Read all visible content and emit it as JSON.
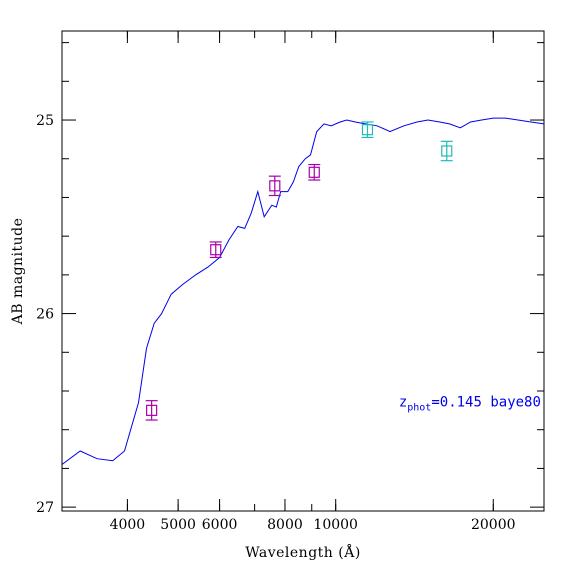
{
  "chart_data": {
    "type": "line",
    "xlabel": "Wavelength (Å)",
    "ylabel": "AB magnitude",
    "x_scale": "log",
    "y_inverted": true,
    "xlim": [
      3000,
      25000
    ],
    "ylim": [
      27.02,
      24.54
    ],
    "x_ticks": [
      {
        "value": 4000,
        "label": "4000"
      },
      {
        "value": 5000,
        "label": "5000"
      },
      {
        "value": 6000,
        "label": "6000"
      },
      {
        "value": 8000,
        "label": "8000"
      },
      {
        "value": 10000,
        "label": "10000"
      },
      {
        "value": 20000,
        "label": "20000"
      }
    ],
    "x_minor_ticks": [
      3000,
      4000,
      5000,
      6000,
      7000,
      8000,
      9000,
      10000,
      20000
    ],
    "y_major_ticks": [
      {
        "value": 25,
        "label": "25"
      },
      {
        "value": 26,
        "label": "26"
      },
      {
        "value": 27,
        "label": "27"
      }
    ],
    "y_minor_ticks": [
      24.6,
      24.8,
      25.2,
      25.4,
      25.6,
      25.8,
      26.2,
      26.4,
      26.6,
      26.8
    ],
    "grid": false,
    "series": [
      {
        "kind": "template",
        "color": "#0000ee",
        "x": [
          3000,
          3250,
          3500,
          3750,
          3950,
          4200,
          4350,
          4500,
          4650,
          4850,
          5100,
          5400,
          5700,
          6000,
          6250,
          6500,
          6700,
          6900,
          7100,
          7300,
          7550,
          7700,
          7850,
          8100,
          8300,
          8500,
          8750,
          8950,
          9200,
          9500,
          9800,
          10200,
          10500,
          10900,
          11400,
          12000,
          12700,
          13500,
          14300,
          15000,
          15800,
          16500,
          17300,
          18100,
          19000,
          20000,
          21100,
          22300,
          23600,
          25000
        ],
        "y": [
          26.78,
          26.71,
          26.75,
          26.76,
          26.71,
          26.46,
          26.18,
          26.05,
          26.0,
          25.9,
          25.85,
          25.8,
          25.76,
          25.71,
          25.62,
          25.55,
          25.56,
          25.48,
          25.37,
          25.5,
          25.44,
          25.45,
          25.37,
          25.37,
          25.32,
          25.24,
          25.2,
          25.18,
          25.06,
          25.02,
          25.03,
          25.01,
          25.0,
          25.01,
          25.02,
          25.03,
          25.06,
          25.03,
          25.01,
          25.0,
          25.01,
          25.02,
          25.04,
          25.01,
          25.0,
          24.99,
          24.99,
          25.0,
          25.01,
          25.02
        ]
      },
      {
        "kind": "photometry",
        "color": "#aa00aa",
        "points": [
          {
            "x": 4450,
            "y": 26.5,
            "err": 0.05
          },
          {
            "x": 5900,
            "y": 25.67,
            "err": 0.04
          },
          {
            "x": 7650,
            "y": 25.34,
            "err": 0.05
          },
          {
            "x": 9100,
            "y": 25.27,
            "err": 0.04
          }
        ]
      },
      {
        "kind": "photometry",
        "color": "#22bbbb",
        "points": [
          {
            "x": 11500,
            "y": 25.05,
            "err": 0.04
          },
          {
            "x": 16300,
            "y": 25.16,
            "err": 0.05
          }
        ]
      }
    ],
    "annotation": {
      "prefix": "z",
      "subscript": "phot",
      "text": "=0.145 baye80",
      "color": "#0000ee",
      "at": {
        "x": 13200,
        "y": 26.48
      }
    }
  }
}
